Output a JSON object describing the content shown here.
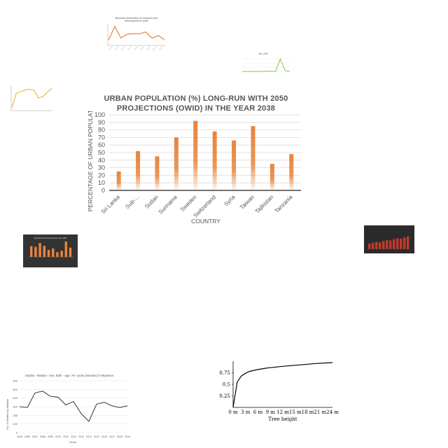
{
  "chart_data": [
    {
      "type": "bar",
      "title": "URBAN POPULATION (%) LONG-RUN WITH 2050 PROJECTIONS (OWID) IN THE YEAR 2038",
      "xlabel": "COUNTRY",
      "ylabel": "PERCENTAGE OF URBAN POPULATION",
      "categories": [
        "Sri Lanka",
        "Sub-...",
        "Sudan",
        "Suriname",
        "Sweden",
        "Switzerland",
        "Syria",
        "Taiwan",
        "Tajikistan",
        "Tanzania"
      ],
      "values": [
        25,
        52,
        45,
        70,
        92,
        78,
        66,
        85,
        35,
        48
      ],
      "ylim": [
        0,
        100
      ],
      "yticks": [
        0,
        10,
        20,
        30,
        40,
        50,
        60,
        70,
        80,
        90,
        100
      ],
      "grid": true,
      "bar_color": "#e8843c"
    },
    {
      "type": "line",
      "title": "Business enterprises on research and development in 2008",
      "values": [
        20,
        78,
        30,
        45,
        48,
        47,
        55,
        28,
        40,
        22
      ],
      "line_color": "#e8843c"
    },
    {
      "type": "line",
      "title": "Yes, 2010",
      "values": [
        2,
        2,
        2,
        2,
        2,
        3,
        2,
        2,
        40,
        5,
        2
      ],
      "line_color": "#8cc63f"
    },
    {
      "type": "line",
      "values": [
        10,
        62,
        68,
        74,
        76,
        72,
        45,
        50,
        66,
        80
      ],
      "line_color": "#f0a830"
    },
    {
      "type": "bar",
      "title": "Agricultural land during the year 1999",
      "values": [
        70,
        65,
        90,
        72,
        45,
        55,
        30,
        40,
        100,
        60
      ],
      "bar_color": "#e8843c"
    },
    {
      "type": "bar",
      "values": [
        30,
        35,
        40,
        38,
        45,
        50,
        48,
        55,
        60,
        58,
        65,
        70
      ],
      "bar_color": "#c0392b"
    },
    {
      "type": "line",
      "title": "Deaths - Malaria - Sex: Both - Age: 70+ years (Number) in Myanmar",
      "xlabel": "Years",
      "ylabel": "No. of Deaths by Malaria",
      "categories": [
        "2005",
        "2006",
        "2007",
        "2008",
        "2009",
        "2010",
        "2011",
        "2012",
        "2013",
        "2014",
        "2015",
        "2016",
        "2017",
        "2018",
        "2019"
      ],
      "values": [
        300,
        290,
        460,
        480,
        420,
        410,
        320,
        360,
        220,
        130,
        330,
        350,
        310,
        290,
        310
      ],
      "yticks": [
        "0",
        "100",
        "200",
        "300",
        "400",
        "500",
        "600"
      ],
      "ylim": [
        0,
        600
      ],
      "line_color": "#333333"
    },
    {
      "type": "line",
      "xlabel": "Tree height",
      "yticks": [
        "0.25",
        "0.5",
        "0.75"
      ],
      "xticks": [
        "0 m",
        "3 m",
        "6 m",
        "9 m",
        "12 m",
        "15 m",
        "18 m",
        "21 m",
        "24 m"
      ],
      "x": [
        0,
        1,
        2,
        3,
        4,
        6,
        8,
        12,
        16,
        20,
        24
      ],
      "values": [
        0.0,
        0.55,
        0.68,
        0.74,
        0.78,
        0.82,
        0.85,
        0.89,
        0.92,
        0.95,
        0.97
      ],
      "ylim": [
        0,
        1
      ],
      "line_color": "#000000"
    }
  ]
}
